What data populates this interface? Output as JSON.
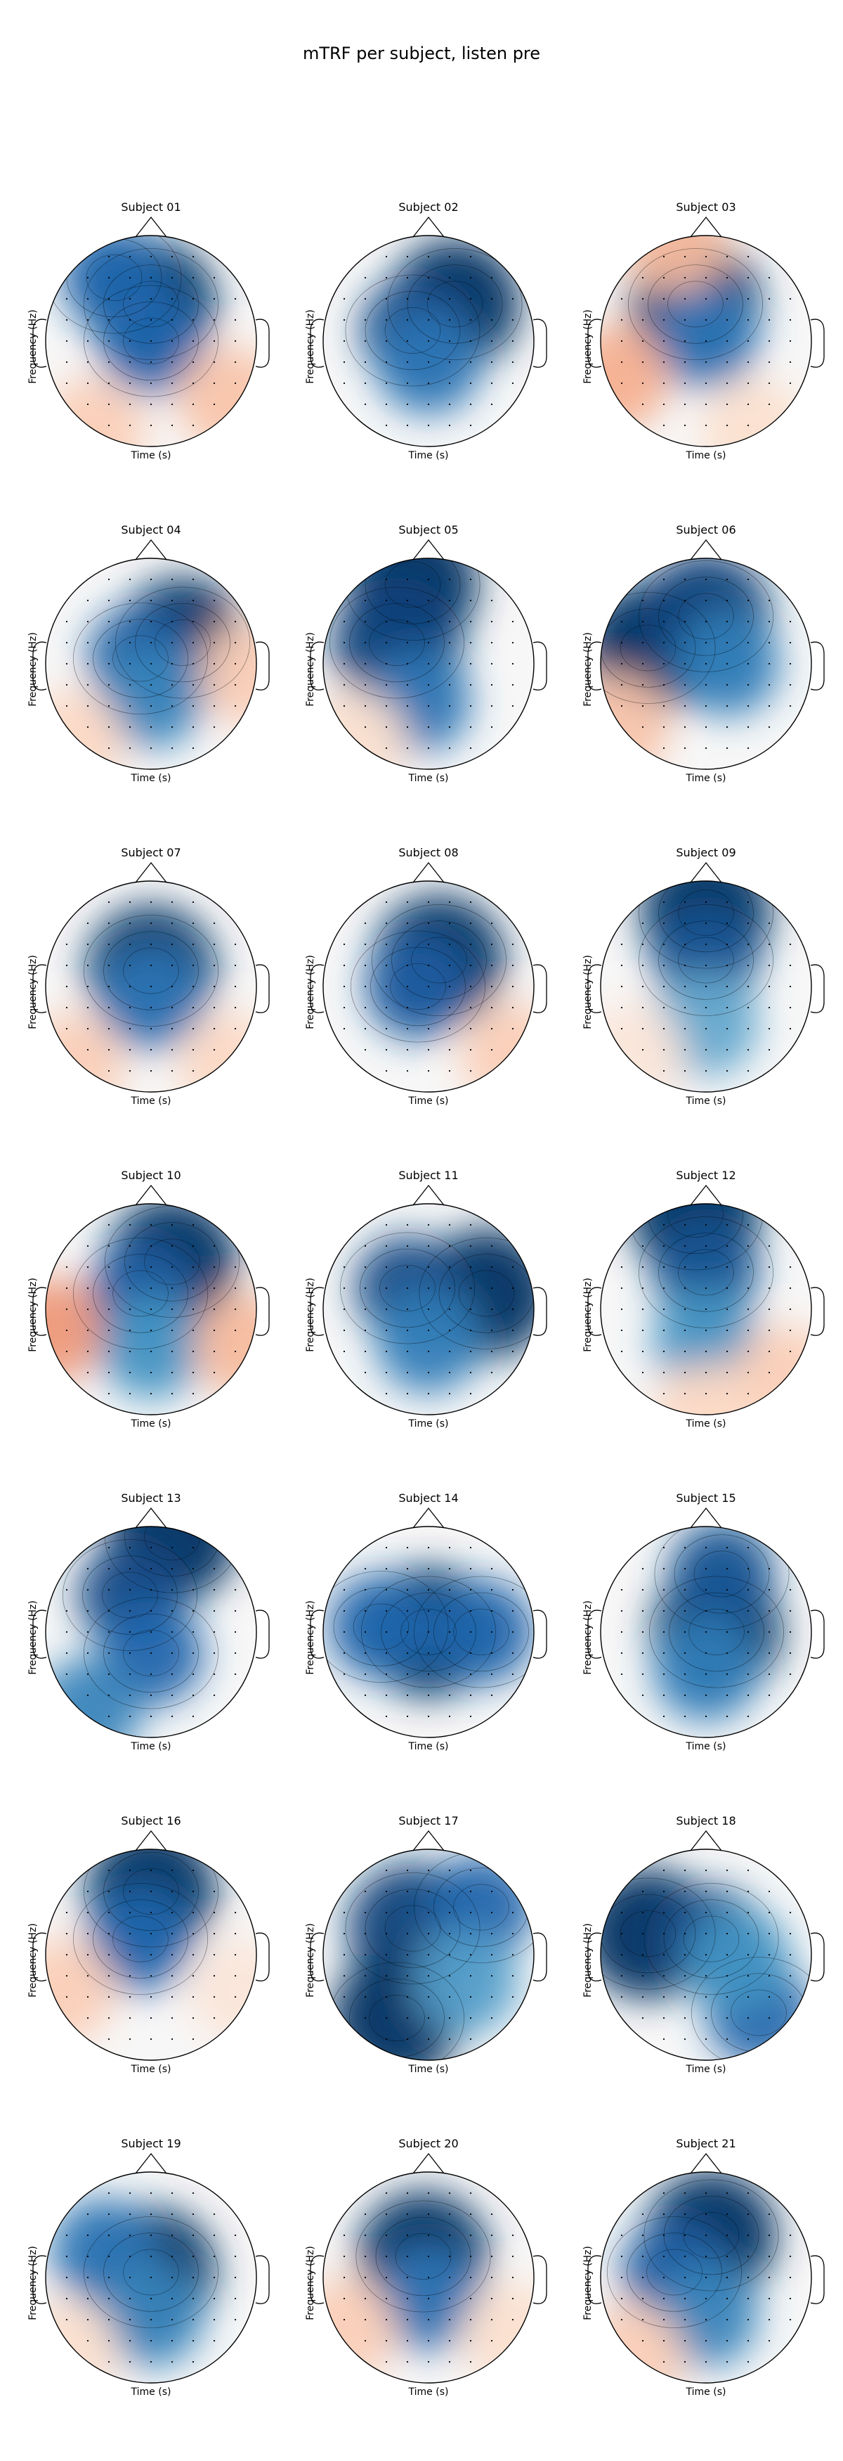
{
  "title": "mTRF per subject, listen pre",
  "colors": {
    "strong_negative": "#08306b",
    "negative": "#2171b5",
    "neutral": "#f7f7f7",
    "positive": "#d6604d"
  },
  "chart_data": {
    "type": "heatmap",
    "plot_kind": "topographic scalp maps (EEG), 7 rows × 3 columns",
    "xlabel": "Time (s)",
    "ylabel": "Frequency (Hz)",
    "colormap": "RdBu_r (blue = negative, red = positive)",
    "panels": [
      {
        "title": "Subject 01",
        "blobs": [
          {
            "x": 0.0,
            "y": 0.35,
            "v": -1.0
          },
          {
            "x": -0.35,
            "y": 0.6,
            "v": -0.7
          },
          {
            "x": 0.0,
            "y": 0.0,
            "v": -0.7
          },
          {
            "x": 0.75,
            "y": -0.55,
            "v": 0.35
          },
          {
            "x": -0.55,
            "y": -0.85,
            "v": 0.3
          }
        ]
      },
      {
        "title": "Subject 02",
        "blobs": [
          {
            "x": 0.25,
            "y": 0.35,
            "v": -1.0
          },
          {
            "x": -0.15,
            "y": 0.1,
            "v": -0.85
          },
          {
            "x": 0.0,
            "y": -0.2,
            "v": -0.6
          }
        ]
      },
      {
        "title": "Subject 03",
        "blobs": [
          {
            "x": -0.1,
            "y": 0.35,
            "v": -1.0
          },
          {
            "x": 0.0,
            "y": 0.05,
            "v": -0.6
          },
          {
            "x": -0.85,
            "y": -0.35,
            "v": 0.45
          },
          {
            "x": -0.3,
            "y": 0.95,
            "v": 0.4
          },
          {
            "x": 0.45,
            "y": -0.85,
            "v": 0.2
          }
        ]
      },
      {
        "title": "Subject 04",
        "blobs": [
          {
            "x": 0.3,
            "y": 0.2,
            "v": -1.0
          },
          {
            "x": -0.1,
            "y": 0.05,
            "v": -0.75
          },
          {
            "x": 0.0,
            "y": -0.3,
            "v": -0.5
          },
          {
            "x": 0.95,
            "y": -0.1,
            "v": 0.3
          },
          {
            "x": -0.75,
            "y": -0.75,
            "v": 0.25
          }
        ]
      },
      {
        "title": "Subject 05",
        "blobs": [
          {
            "x": -0.15,
            "y": 0.75,
            "v": -1.0
          },
          {
            "x": -0.3,
            "y": 0.2,
            "v": -0.9
          },
          {
            "x": -0.1,
            "y": -0.35,
            "v": -0.6
          },
          {
            "x": -0.7,
            "y": -0.75,
            "v": 0.2
          }
        ]
      },
      {
        "title": "Subject 06",
        "blobs": [
          {
            "x": -0.55,
            "y": 0.15,
            "v": -1.0
          },
          {
            "x": 0.0,
            "y": 0.45,
            "v": -0.9
          },
          {
            "x": 0.2,
            "y": 0.0,
            "v": -0.55
          },
          {
            "x": -0.85,
            "y": -0.6,
            "v": 0.35
          }
        ]
      },
      {
        "title": "Subject 07",
        "blobs": [
          {
            "x": 0.0,
            "y": 0.15,
            "v": -1.0
          },
          {
            "x": 0.0,
            "y": -0.1,
            "v": -0.6
          },
          {
            "x": -0.75,
            "y": -0.75,
            "v": 0.3
          },
          {
            "x": 0.75,
            "y": -0.75,
            "v": 0.25
          }
        ]
      },
      {
        "title": "Subject 08",
        "blobs": [
          {
            "x": 0.1,
            "y": 0.25,
            "v": -1.0
          },
          {
            "x": -0.1,
            "y": 0.0,
            "v": -0.75
          },
          {
            "x": 0.8,
            "y": -0.65,
            "v": 0.3
          }
        ]
      },
      {
        "title": "Subject 09",
        "blobs": [
          {
            "x": 0.0,
            "y": 0.7,
            "v": -1.0
          },
          {
            "x": 0.0,
            "y": 0.25,
            "v": -0.8
          },
          {
            "x": 0.0,
            "y": -0.35,
            "v": -0.3
          },
          {
            "x": -0.7,
            "y": -0.65,
            "v": 0.15
          }
        ]
      },
      {
        "title": "Subject 10",
        "blobs": [
          {
            "x": 0.2,
            "y": 0.45,
            "v": -1.0
          },
          {
            "x": -0.1,
            "y": 0.15,
            "v": -0.75
          },
          {
            "x": 0.0,
            "y": -0.35,
            "v": -0.4
          },
          {
            "x": -0.95,
            "y": -0.2,
            "v": 0.55
          },
          {
            "x": 0.9,
            "y": -0.35,
            "v": 0.4
          }
        ]
      },
      {
        "title": "Subject 11",
        "blobs": [
          {
            "x": 0.55,
            "y": 0.15,
            "v": -1.0
          },
          {
            "x": -0.2,
            "y": 0.2,
            "v": -0.85
          },
          {
            "x": 0.0,
            "y": -0.3,
            "v": -0.55
          }
        ]
      },
      {
        "title": "Subject 12",
        "blobs": [
          {
            "x": -0.1,
            "y": 0.9,
            "v": -1.0
          },
          {
            "x": 0.0,
            "y": 0.35,
            "v": -0.8
          },
          {
            "x": 0.0,
            "y": -0.3,
            "v": -0.4
          },
          {
            "x": 0.75,
            "y": -0.65,
            "v": 0.3
          },
          {
            "x": 0.0,
            "y": -1.0,
            "v": 0.25
          }
        ]
      },
      {
        "title": "Subject 13",
        "blobs": [
          {
            "x": 0.2,
            "y": 0.9,
            "v": -1.0
          },
          {
            "x": -0.2,
            "y": 0.35,
            "v": -0.85
          },
          {
            "x": 0.0,
            "y": -0.2,
            "v": -0.7
          },
          {
            "x": -0.6,
            "y": -0.75,
            "v": -0.5
          }
        ]
      },
      {
        "title": "Subject 14",
        "blobs": [
          {
            "x": 0.0,
            "y": 0.0,
            "v": -1.0
          },
          {
            "x": -0.45,
            "y": 0.05,
            "v": -0.7
          },
          {
            "x": 0.5,
            "y": 0.0,
            "v": -0.7
          }
        ]
      },
      {
        "title": "Subject 15",
        "blobs": [
          {
            "x": 0.1,
            "y": 0.0,
            "v": -1.0
          },
          {
            "x": 0.15,
            "y": 0.55,
            "v": -0.8
          },
          {
            "x": 0.0,
            "y": -0.35,
            "v": -0.55
          }
        ]
      },
      {
        "title": "Subject 16",
        "blobs": [
          {
            "x": 0.0,
            "y": 0.6,
            "v": -1.0
          },
          {
            "x": -0.1,
            "y": 0.15,
            "v": -0.7
          },
          {
            "x": -0.85,
            "y": -0.35,
            "v": 0.3
          },
          {
            "x": 0.85,
            "y": -0.35,
            "v": 0.15
          }
        ]
      },
      {
        "title": "Subject 17",
        "blobs": [
          {
            "x": -0.15,
            "y": 0.25,
            "v": -0.9
          },
          {
            "x": -0.3,
            "y": -0.6,
            "v": -1.0
          },
          {
            "x": 0.5,
            "y": 0.45,
            "v": -0.7
          },
          {
            "x": 0.35,
            "y": -0.25,
            "v": -0.35
          }
        ]
      },
      {
        "title": "Subject 18",
        "blobs": [
          {
            "x": -0.55,
            "y": 0.2,
            "v": -1.0
          },
          {
            "x": 0.05,
            "y": 0.15,
            "v": -0.85
          },
          {
            "x": 0.5,
            "y": -0.55,
            "v": -0.7
          },
          {
            "x": 0.3,
            "y": -0.05,
            "v": -0.4
          }
        ]
      },
      {
        "title": "Subject 19",
        "blobs": [
          {
            "x": 0.0,
            "y": 0.05,
            "v": -1.0
          },
          {
            "x": -0.45,
            "y": 0.25,
            "v": -0.6
          },
          {
            "x": 0.0,
            "y": -0.35,
            "v": -0.5
          },
          {
            "x": -0.8,
            "y": -0.7,
            "v": 0.2
          }
        ]
      },
      {
        "title": "Subject 20",
        "blobs": [
          {
            "x": -0.05,
            "y": 0.2,
            "v": -1.0
          },
          {
            "x": 0.0,
            "y": -0.2,
            "v": -0.6
          },
          {
            "x": -0.8,
            "y": -0.5,
            "v": 0.3
          },
          {
            "x": 0.8,
            "y": -0.55,
            "v": 0.2
          }
        ]
      },
      {
        "title": "Subject 21",
        "blobs": [
          {
            "x": 0.05,
            "y": 0.4,
            "v": -1.0
          },
          {
            "x": -0.3,
            "y": 0.05,
            "v": -0.75
          },
          {
            "x": 0.0,
            "y": -0.35,
            "v": -0.5
          },
          {
            "x": -0.7,
            "y": -0.75,
            "v": 0.3
          }
        ]
      }
    ]
  }
}
